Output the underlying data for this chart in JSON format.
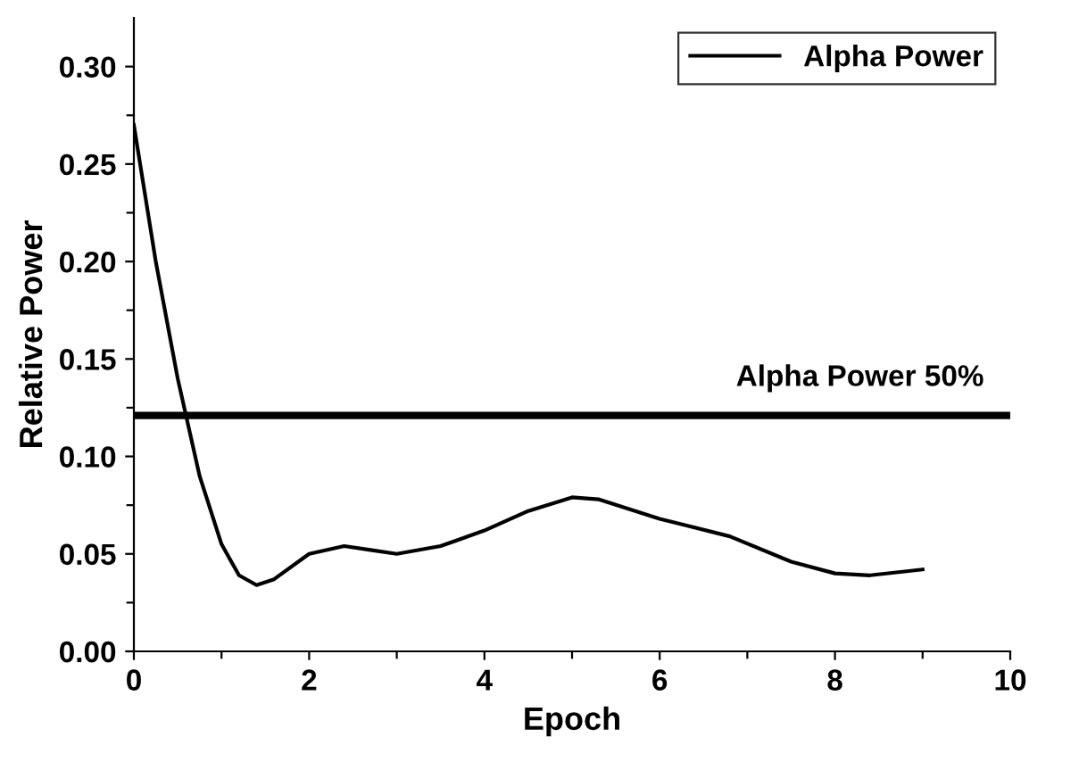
{
  "chart_data": {
    "type": "line",
    "xlabel": "Epoch",
    "ylabel": "Relative Power",
    "x": [
      0,
      0.25,
      0.5,
      0.75,
      1.0,
      1.2,
      1.4,
      1.6,
      2.0,
      2.4,
      2.7,
      3.0,
      3.5,
      4.0,
      4.5,
      5.0,
      5.3,
      6.0,
      6.8,
      7.5,
      8.0,
      8.4,
      9.0
    ],
    "series": [
      {
        "name": "Alpha Power",
        "color": "#000000",
        "values": [
          0.27,
          0.2,
          0.14,
          0.09,
          0.055,
          0.039,
          0.034,
          0.037,
          0.05,
          0.054,
          0.052,
          0.05,
          0.054,
          0.062,
          0.072,
          0.079,
          0.078,
          0.068,
          0.059,
          0.046,
          0.04,
          0.039,
          0.042
        ]
      }
    ],
    "xlim": [
      0,
      10
    ],
    "ylim": [
      0,
      0.325
    ],
    "xticks": [
      0,
      {
        "value": 1,
        "label": null
      },
      2,
      {
        "value": 3,
        "label": null
      },
      4,
      {
        "value": 5,
        "label": null
      },
      6,
      {
        "value": 7,
        "label": null
      },
      8,
      {
        "value": 9,
        "label": null
      },
      10
    ],
    "yticks": [
      {
        "value": 0,
        "label": "0.00"
      },
      {
        "value": 0.025,
        "label": null
      },
      {
        "value": 0.05,
        "label": "0.05"
      },
      {
        "value": 0.075,
        "label": null
      },
      {
        "value": 0.1,
        "label": "0.10"
      },
      {
        "value": 0.125,
        "label": null
      },
      {
        "value": 0.15,
        "label": "0.15"
      },
      {
        "value": 0.175,
        "label": null
      },
      {
        "value": 0.2,
        "label": "0.20"
      },
      {
        "value": 0.225,
        "label": null
      },
      {
        "value": 0.25,
        "label": "0.25"
      },
      {
        "value": 0.275,
        "label": null
      },
      {
        "value": 0.3,
        "label": "0.30"
      }
    ],
    "ref_lines": [
      {
        "axis": "y",
        "value": 0.121,
        "label": "Alpha Power 50%",
        "color": "#000000"
      }
    ],
    "legend": "top right",
    "grid": false,
    "marker": "none",
    "line_style": "solid"
  }
}
